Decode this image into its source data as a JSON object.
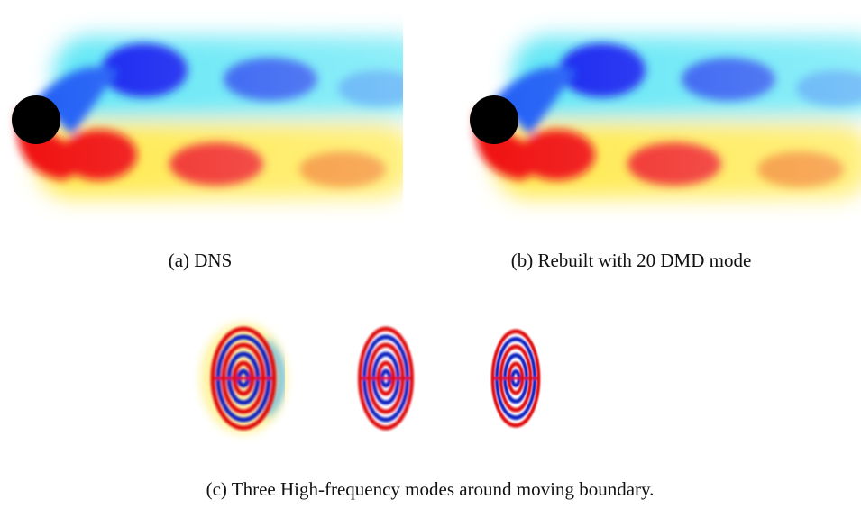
{
  "figure": {
    "subfigures": [
      {
        "caption": "(a) DNS"
      },
      {
        "caption": "(b) Rebuilt with 20 DMD mode"
      },
      {
        "caption": "(c) Three High-frequency modes around moving boundary."
      }
    ]
  }
}
